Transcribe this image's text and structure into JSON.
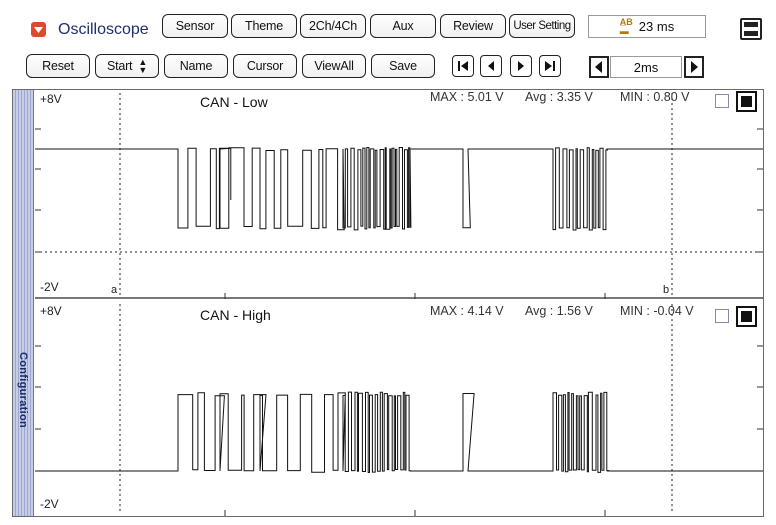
{
  "app": {
    "title": "Oscilloscope"
  },
  "toolbar_top": {
    "sensor": "Sensor",
    "theme": "Theme",
    "channels": "2Ch/4Ch",
    "aux": "Aux",
    "review": "Review",
    "user_setting": "User Setting",
    "timing": "23 ms"
  },
  "toolbar_bottom": {
    "reset": "Reset",
    "start": "Start",
    "name": "Name",
    "cursor": "Cursor",
    "view_all": "ViewAll",
    "save": "Save",
    "time_div": "2ms"
  },
  "sidebar": {
    "label": "Configuration"
  },
  "channels": [
    {
      "name": "CAN - Low",
      "scale_top": "+8V",
      "scale_bottom": "-2V",
      "max": "MAX  : 5.01 V",
      "avg": "Avg  : 3.35 V",
      "min": "MIN  : 0.80 V",
      "cursor_a": "a",
      "cursor_b": "b"
    },
    {
      "name": "CAN - High",
      "scale_top": "+8V",
      "scale_bottom": "-2V",
      "max": "MAX  : 4.14 V",
      "avg": "Avg  : 1.56 V",
      "min": "MIN  : -0.04 V"
    }
  ],
  "colors": {
    "title": "#1f2f6e",
    "app_icon": "#d94b2b",
    "sidebar": "#b3bbdd"
  }
}
